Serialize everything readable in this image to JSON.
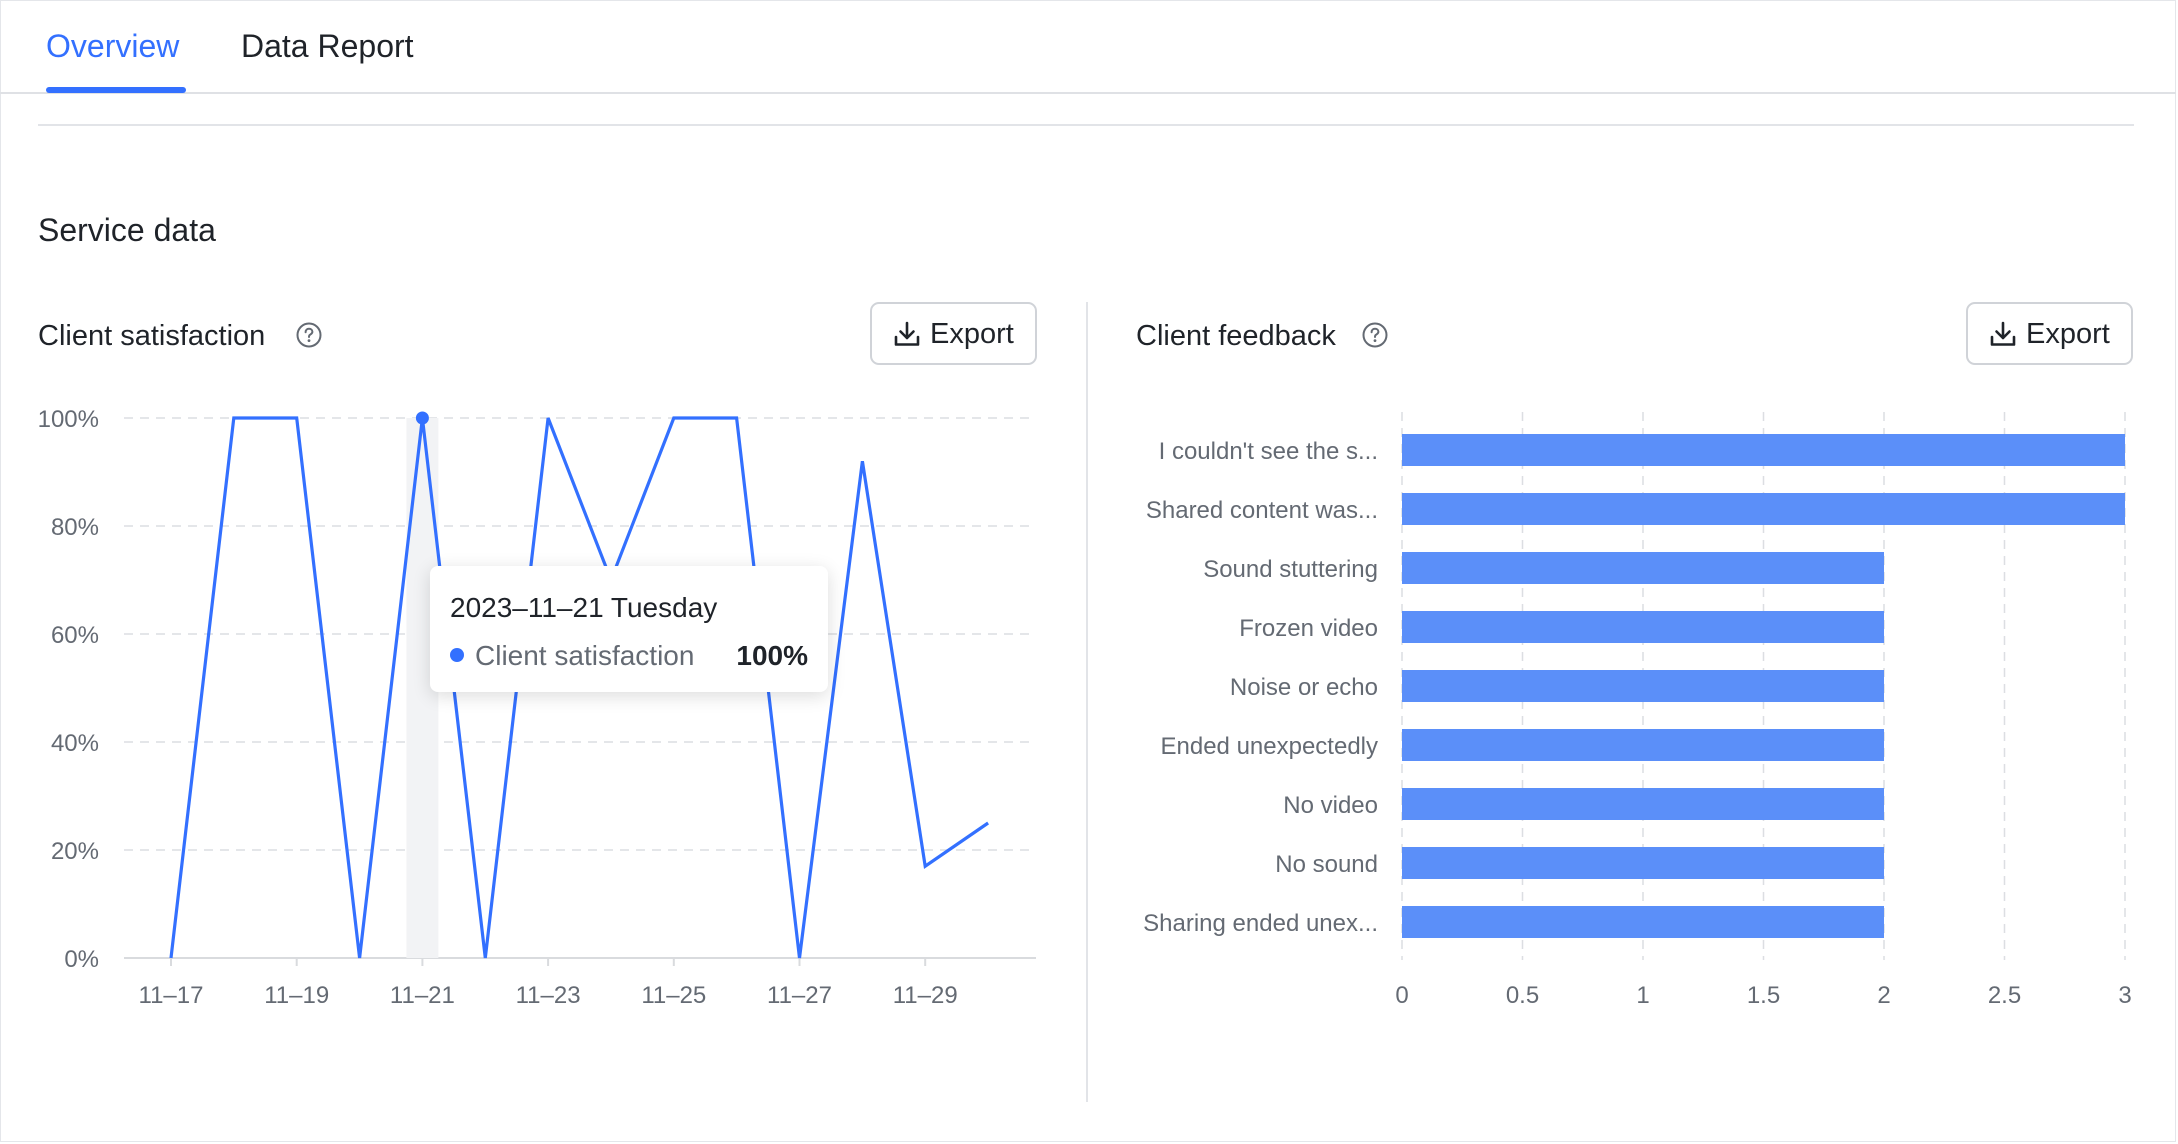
{
  "tabs": [
    {
      "label": "Overview",
      "active": true
    },
    {
      "label": "Data Report",
      "active": false
    }
  ],
  "section_title": "Service data",
  "accent_color": "#3370ff",
  "bar_color": "#5b8ff9",
  "export_label": "Export",
  "icons": [
    "question-circle-icon",
    "download-icon"
  ],
  "satisfaction_card": {
    "title": "Client satisfaction",
    "tooltip": {
      "date": "2023–11–21 Tuesday",
      "series": "Client satisfaction",
      "value": "100%"
    }
  },
  "feedback_card": {
    "title": "Client feedback"
  },
  "chart_data": [
    {
      "type": "line",
      "title": "Client satisfaction",
      "x": [
        "11–17",
        "11–18",
        "11–19",
        "11–20",
        "11–21",
        "11–22",
        "11–23",
        "11–24",
        "11–25",
        "11–26",
        "11–27",
        "11–28",
        "11–29",
        "11–30"
      ],
      "x_tick_labels": [
        "11–17",
        "11–19",
        "11–21",
        "11–23",
        "11–25",
        "11–27",
        "11–29"
      ],
      "series": [
        {
          "values": [
            0,
            100,
            100,
            0,
            100,
            0,
            100,
            70,
            100,
            100,
            0,
            92,
            17,
            25
          ]
        }
      ],
      "y_tick_labels": [
        "0%",
        "20%",
        "40%",
        "60%",
        "80%",
        "100%"
      ],
      "ylim": [
        0,
        100
      ],
      "grid": true,
      "highlight": {
        "x": "11–21",
        "value": 100
      }
    },
    {
      "type": "bar",
      "orientation": "horizontal",
      "title": "Client feedback",
      "categories": [
        "I couldn't see the s...",
        "Shared content was...",
        "Sound stuttering",
        "Frozen video",
        "Noise or echo",
        "Ended unexpectedly",
        "No video",
        "No sound",
        "Sharing ended unex..."
      ],
      "values": [
        3,
        3,
        2,
        2,
        2,
        2,
        2,
        2,
        2
      ],
      "x_tick_labels": [
        "0",
        "0.5",
        "1",
        "1.5",
        "2",
        "2.5",
        "3"
      ],
      "xlim": [
        0,
        3
      ],
      "grid": true
    }
  ]
}
